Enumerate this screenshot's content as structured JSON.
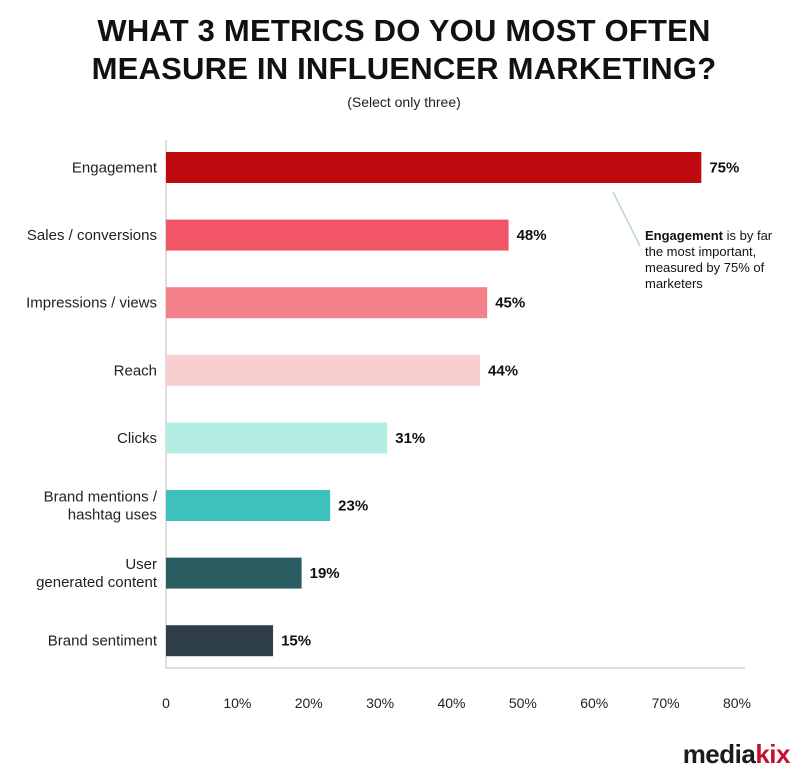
{
  "chart_data": {
    "type": "bar",
    "orientation": "horizontal",
    "title_lines": [
      "WHAT 3 METRICS DO YOU MOST OFTEN",
      "MEASURE IN INFLUENCER MARKETING?"
    ],
    "subtitle": "(Select only three)",
    "categories": [
      [
        "Engagement"
      ],
      [
        "Sales / conversions"
      ],
      [
        "Impressions / views"
      ],
      [
        "Reach"
      ],
      [
        "Clicks"
      ],
      [
        "Brand mentions /",
        "hashtag uses"
      ],
      [
        "User",
        "generated content"
      ],
      [
        "Brand sentiment"
      ]
    ],
    "values": [
      75,
      48,
      45,
      44,
      31,
      23,
      19,
      15
    ],
    "value_labels": [
      "75%",
      "48%",
      "45%",
      "44%",
      "31%",
      "23%",
      "19%",
      "15%"
    ],
    "colors": [
      "#bf0a0f",
      "#f25567",
      "#f4808a",
      "#f9cece",
      "#b4ede1",
      "#3ec1bd",
      "#2a5e63",
      "#2f3f4a"
    ],
    "xlim": [
      0,
      80
    ],
    "xticks": [
      0,
      10,
      20,
      30,
      40,
      50,
      60,
      70,
      80
    ],
    "xtick_labels": [
      "0",
      "10%",
      "20%",
      "30%",
      "40%",
      "50%",
      "60%",
      "70%",
      "80%"
    ],
    "grid": false,
    "annotation": {
      "bold": "Engagement",
      "rest_line1": " is by far",
      "line2": "the most important,",
      "line3": "measured by 75% of",
      "line4": "marketers"
    }
  },
  "brand": {
    "part1": "media",
    "part2": "kix"
  }
}
